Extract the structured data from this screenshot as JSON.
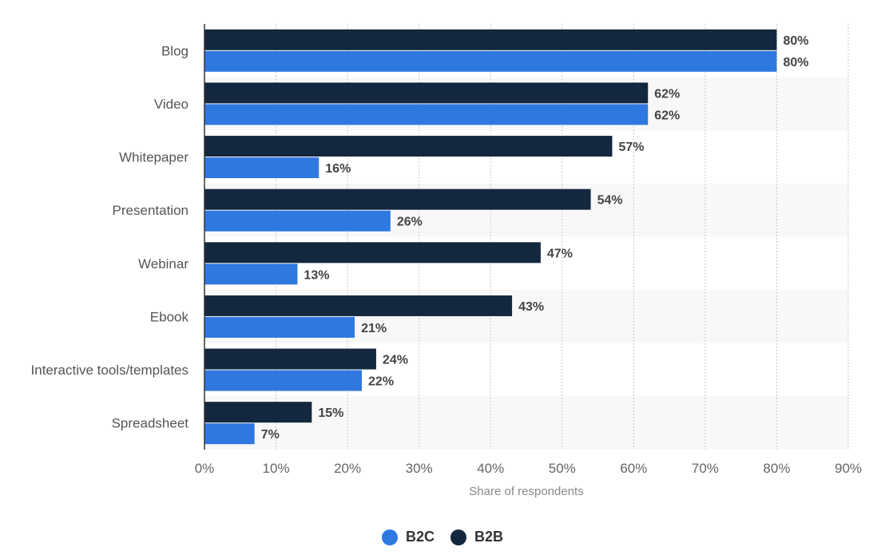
{
  "chart_data": {
    "type": "bar",
    "orientation": "horizontal",
    "categories": [
      "Blog",
      "Video",
      "Whitepaper",
      "Presentation",
      "Webinar",
      "Ebook",
      "Interactive tools/templates",
      "Spreadsheet"
    ],
    "series": [
      {
        "name": "B2B",
        "color": "#13283e",
        "values": [
          80,
          62,
          57,
          54,
          47,
          43,
          24,
          15
        ]
      },
      {
        "name": "B2C",
        "color": "#2f78e0",
        "values": [
          80,
          62,
          16,
          26,
          13,
          21,
          22,
          7
        ]
      }
    ],
    "value_suffix": "%",
    "xlabel": "Share of respondents",
    "ylabel": "",
    "xlim": [
      0,
      90
    ],
    "xticks": [
      0,
      10,
      20,
      30,
      40,
      50,
      60,
      70,
      80,
      90
    ],
    "tick_labels": [
      "0%",
      "10%",
      "20%",
      "30%",
      "40%",
      "50%",
      "60%",
      "70%",
      "80%",
      "90%"
    ],
    "grid": true,
    "legend_position": "bottom"
  },
  "legend": [
    {
      "name": "B2C",
      "color": "#2f78e0"
    },
    {
      "name": "B2B",
      "color": "#13283e"
    }
  ]
}
